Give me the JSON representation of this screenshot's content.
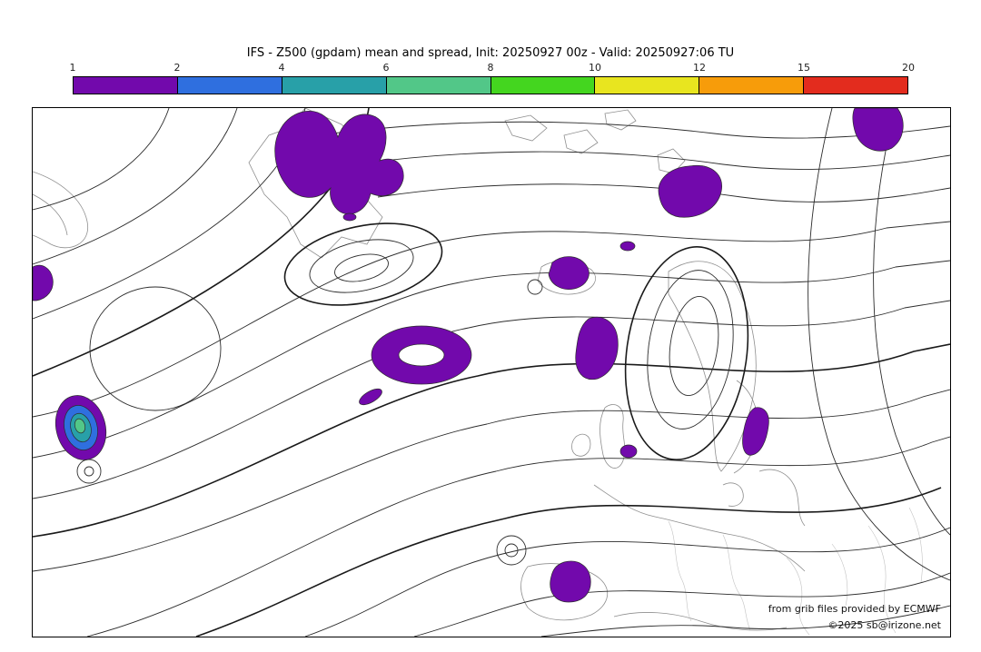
{
  "title": "IFS - Z500 (gpdam) mean and spread, Init: 20250927 00z - Valid: 20250927:06 TU",
  "colorbar": {
    "ticks": [
      "1",
      "2",
      "4",
      "6",
      "8",
      "10",
      "12",
      "15",
      "20"
    ],
    "colors": [
      "#7209ac",
      "#2f6fdf",
      "#28a0a8",
      "#52c788",
      "#44d61f",
      "#e8e51f",
      "#f79c0a",
      "#e32c1e"
    ]
  },
  "map": {
    "spread_color": "#7209ac",
    "spread_ring_colors": [
      "#7209ac",
      "#2f6fdf",
      "#28a0a8",
      "#52c788"
    ]
  },
  "credits": {
    "line1": "from grib files provided by ECMWF",
    "line2": "©2025 sb@irizone.net"
  }
}
